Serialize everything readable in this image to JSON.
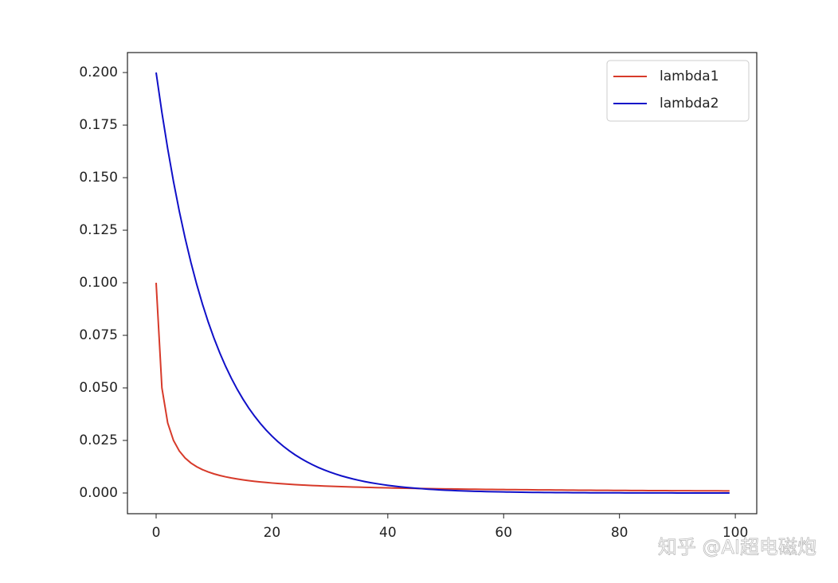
{
  "chart_data": {
    "type": "line",
    "x": [
      0,
      1,
      2,
      3,
      4,
      5,
      6,
      7,
      8,
      9,
      10,
      11,
      12,
      13,
      14,
      15,
      16,
      17,
      18,
      19,
      20,
      21,
      22,
      23,
      24,
      25,
      26,
      27,
      28,
      29,
      30,
      31,
      32,
      33,
      34,
      35,
      36,
      37,
      38,
      39,
      40,
      41,
      42,
      43,
      44,
      45,
      46,
      47,
      48,
      49,
      50,
      51,
      52,
      53,
      54,
      55,
      56,
      57,
      58,
      59,
      60,
      61,
      62,
      63,
      64,
      65,
      66,
      67,
      68,
      69,
      70,
      71,
      72,
      73,
      74,
      75,
      76,
      77,
      78,
      79,
      80,
      81,
      82,
      83,
      84,
      85,
      86,
      87,
      88,
      89,
      90,
      91,
      92,
      93,
      94,
      95,
      96,
      97,
      98,
      99
    ],
    "series": [
      {
        "name": "lambda1",
        "color": "#d73a2a",
        "values": [
          0.1,
          0.05,
          0.03333,
          0.025,
          0.02,
          0.01667,
          0.01429,
          0.0125,
          0.01111,
          0.01,
          0.00909,
          0.00833,
          0.00769,
          0.00714,
          0.00667,
          0.00625,
          0.00588,
          0.00556,
          0.00526,
          0.005,
          0.00476,
          0.00455,
          0.00435,
          0.00417,
          0.004,
          0.00385,
          0.0037,
          0.00357,
          0.00345,
          0.00333,
          0.00323,
          0.00313,
          0.00303,
          0.00294,
          0.00286,
          0.00278,
          0.0027,
          0.00263,
          0.00256,
          0.0025,
          0.00244,
          0.00238,
          0.00233,
          0.00227,
          0.00222,
          0.00217,
          0.00213,
          0.00208,
          0.00204,
          0.002,
          0.00196,
          0.00192,
          0.00189,
          0.00185,
          0.00182,
          0.00179,
          0.00175,
          0.00172,
          0.00169,
          0.00167,
          0.00164,
          0.00161,
          0.00159,
          0.00156,
          0.00154,
          0.00152,
          0.00149,
          0.00147,
          0.00145,
          0.00143,
          0.00141,
          0.00139,
          0.00137,
          0.00135,
          0.00133,
          0.00132,
          0.0013,
          0.00128,
          0.00127,
          0.00125,
          0.00123,
          0.00122,
          0.0012,
          0.00119,
          0.00118,
          0.00116,
          0.00115,
          0.00114,
          0.00112,
          0.00111,
          0.0011,
          0.00109,
          0.00108,
          0.00106,
          0.00105,
          0.00104,
          0.00103,
          0.00102,
          0.00101,
          0.001
        ]
      },
      {
        "name": "lambda2",
        "color": "#1010c8",
        "values": [
          0.2,
          0.18097,
          0.16375,
          0.14816,
          0.13406,
          0.12131,
          0.10976,
          0.09932,
          0.08987,
          0.08131,
          0.07358,
          0.06657,
          0.06024,
          0.05451,
          0.04932,
          0.04463,
          0.04038,
          0.03654,
          0.03306,
          0.02991,
          0.02707,
          0.02449,
          0.02216,
          0.02005,
          0.01814,
          0.01642,
          0.01485,
          0.01344,
          0.01216,
          0.011,
          0.00996,
          0.00901,
          0.00815,
          0.00738,
          0.00667,
          0.00604,
          0.00546,
          0.00494,
          0.00447,
          0.00405,
          0.00366,
          0.00331,
          0.003,
          0.00271,
          0.00246,
          0.00222,
          0.00201,
          0.00182,
          0.00165,
          0.00149,
          0.00135,
          0.00122,
          0.0011,
          0.001,
          0.0009,
          0.00082,
          0.00074,
          0.00067,
          0.00061,
          0.00055,
          0.0005,
          0.00045,
          0.00041,
          0.00037,
          0.00033,
          0.0003,
          0.00027,
          0.00025,
          0.00022,
          0.0002,
          0.00018,
          0.00017,
          0.00015,
          0.00014,
          0.00012,
          0.00011,
          0.0001,
          9e-05,
          8e-05,
          7e-05,
          7e-05,
          6e-05,
          5e-05,
          5e-05,
          4e-05,
          4e-05,
          4e-05,
          3e-05,
          3e-05,
          3e-05,
          2e-05,
          2e-05,
          2e-05,
          2e-05,
          2e-05,
          1e-05,
          1e-05,
          1e-05,
          1e-05,
          1e-05
        ]
      }
    ],
    "xlim": [
      -4.95,
      103.7
    ],
    "ylim": [
      -0.00985,
      0.2095
    ],
    "xticks": [
      0,
      20,
      40,
      60,
      80,
      100
    ],
    "yticks": [
      {
        "value": 0,
        "label": "0.000"
      },
      {
        "value": 0.025,
        "label": "0.025"
      },
      {
        "value": 0.05,
        "label": "0.050"
      },
      {
        "value": 0.075,
        "label": "0.075"
      },
      {
        "value": 0.1,
        "label": "0.100"
      },
      {
        "value": 0.125,
        "label": "0.125"
      },
      {
        "value": 0.15,
        "label": "0.150"
      },
      {
        "value": 0.175,
        "label": "0.175"
      },
      {
        "value": 0.2,
        "label": "0.200"
      }
    ],
    "legend": "upper right",
    "watermark": "知乎 @AI超电磁炮"
  }
}
